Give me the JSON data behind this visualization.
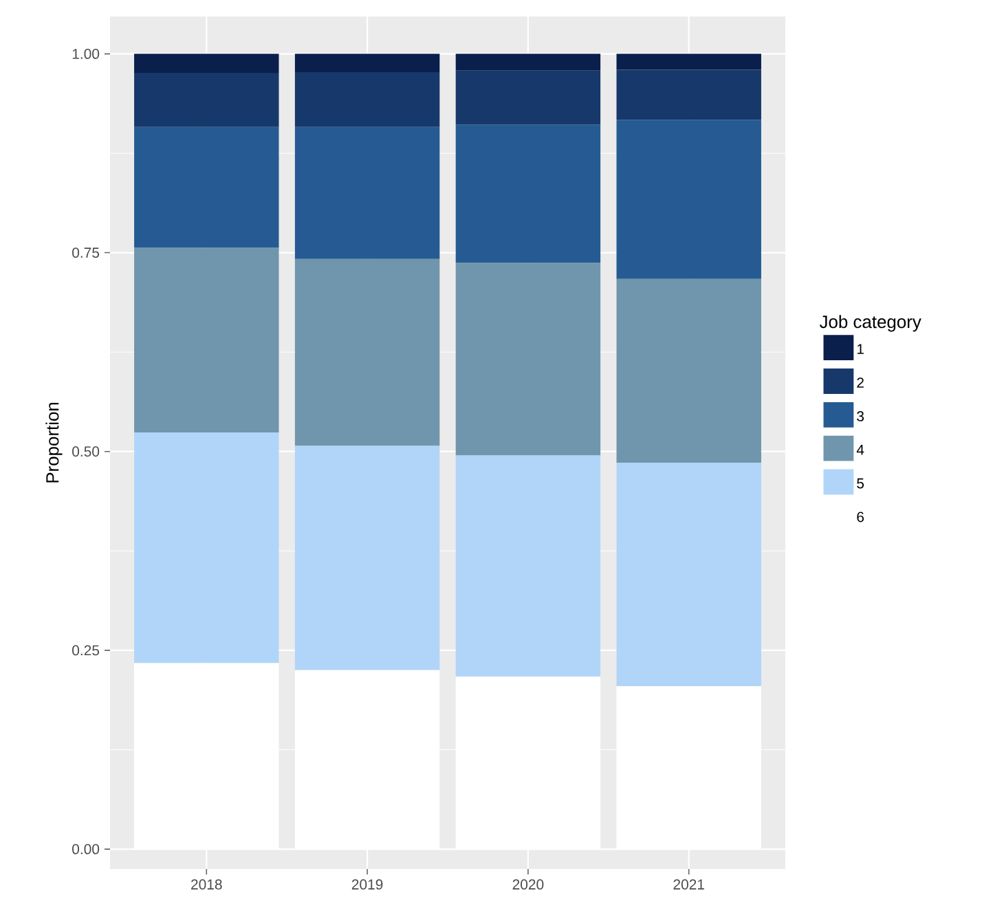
{
  "chart_data": {
    "type": "bar",
    "stacked": true,
    "ylabel": "Proportion",
    "legend_title": "Job category",
    "legend": "right",
    "grid": true,
    "categories": [
      "2018",
      "2019",
      "2020",
      "2021"
    ],
    "ylim": [
      -0.025,
      1.047
    ],
    "yticks": [
      {
        "value": 0,
        "label": "0.00"
      },
      {
        "value": 0.25,
        "label": "0.25"
      },
      {
        "value": 0.5,
        "label": "0.50"
      },
      {
        "value": 0.75,
        "label": "0.75"
      },
      {
        "value": 1,
        "label": "1.00"
      }
    ],
    "series": [
      {
        "name": "6",
        "color": "#ffffff",
        "values": [
          0.234,
          0.225,
          0.217,
          0.205
        ]
      },
      {
        "name": "5",
        "color": "#b0d5f9",
        "values": [
          0.29,
          0.282,
          0.278,
          0.281
        ]
      },
      {
        "name": "4",
        "color": "#7096ad",
        "values": [
          0.232,
          0.235,
          0.242,
          0.231
        ]
      },
      {
        "name": "3",
        "color": "#255b92",
        "values": [
          0.152,
          0.166,
          0.174,
          0.2
        ]
      },
      {
        "name": "2",
        "color": "#17386a",
        "values": [
          0.068,
          0.069,
          0.068,
          0.063
        ]
      },
      {
        "name": "1",
        "color": "#0b1f4d",
        "values": [
          0.024,
          0.023,
          0.021,
          0.02
        ]
      }
    ]
  }
}
